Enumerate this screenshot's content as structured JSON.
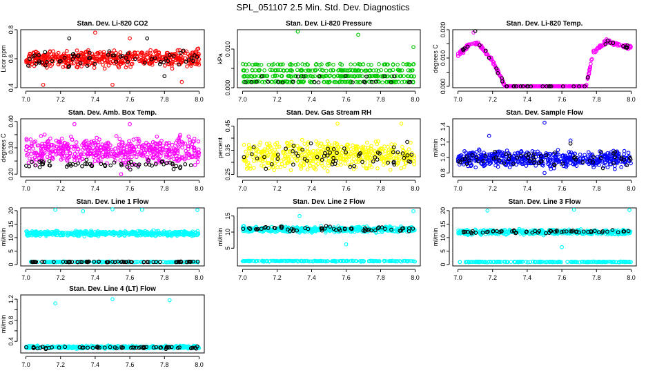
{
  "figure_title": "SPL_051107  2.5 Min. Std. Dev. Diagnostics",
  "colors": {
    "red": "#ff0000",
    "green": "#00c800",
    "magenta": "#ff00ff",
    "yellow": "#ffff00",
    "blue": "#0000ff",
    "cyan": "#00ffff",
    "black": "#000000"
  },
  "chart_data": [
    {
      "type": "scatter",
      "title": "Stan. Dev. Li-820 CO2",
      "xlabel": "",
      "ylabel": "Licor ppm",
      "xlim": [
        6.97,
        8.03
      ],
      "ylim": [
        0.4,
        0.8
      ],
      "yticks": [
        0.4,
        0.6,
        0.8
      ],
      "ytick_labels": [
        "0.4",
        "0.6",
        "0.8"
      ],
      "xticks": [
        7.0,
        7.2,
        7.4,
        7.6,
        7.8,
        8.0
      ],
      "xtick_labels": [
        "7.0",
        "7.2",
        "7.4",
        "7.6",
        "7.8",
        "8.0"
      ],
      "grid": false,
      "series": [
        {
          "color": "red",
          "pattern": "band",
          "n": 520,
          "base": 0.6,
          "spread": 0.06,
          "outliers": [
            [
              7.1,
              0.42
            ],
            [
              7.5,
              0.42
            ],
            [
              7.9,
              0.44
            ],
            [
              7.4,
              0.78
            ],
            [
              7.6,
              0.74
            ]
          ]
        },
        {
          "color": "black",
          "pattern": "band",
          "n": 60,
          "base": 0.6,
          "spread": 0.06,
          "outliers": [
            [
              7.25,
              0.74
            ],
            [
              7.7,
              0.74
            ],
            [
              7.8,
              0.48
            ]
          ]
        }
      ]
    },
    {
      "type": "scatter",
      "title": "Stan. Dev. Li-820 Pressure",
      "xlabel": "",
      "ylabel": "kPa",
      "xlim": [
        6.97,
        8.03
      ],
      "ylim": [
        0.0,
        0.015
      ],
      "yticks": [
        0.0,
        0.005,
        0.01
      ],
      "ytick_labels": [
        "0.000",
        "",
        "0.010"
      ],
      "xticks": [
        7.0,
        7.2,
        7.4,
        7.6,
        7.8,
        8.0
      ],
      "xtick_labels": [
        "7.0",
        "7.2",
        "7.4",
        "7.6",
        "7.8",
        "8.0"
      ],
      "grid": false,
      "series": [
        {
          "color": "green",
          "pattern": "levels",
          "n": 520,
          "levels": [
            0.0,
            0.0015,
            0.003,
            0.0045,
            0.006
          ],
          "weights": [
            0.22,
            0.22,
            0.22,
            0.2,
            0.14
          ],
          "outliers": [
            [
              7.32,
              0.0145
            ],
            [
              7.67,
              0.0137
            ],
            [
              7.99,
              0.0105
            ]
          ]
        },
        {
          "color": "black",
          "pattern": "levels",
          "n": 60,
          "levels": [
            0.0,
            0.0015,
            0.003
          ],
          "weights": [
            0.7,
            0.15,
            0.15
          ],
          "outliers": []
        }
      ]
    },
    {
      "type": "scatter",
      "title": "Stan. Dev. Li-820 Temp.",
      "xlabel": "",
      "ylabel": "degrees C",
      "xlim": [
        6.97,
        8.03
      ],
      "ylim": [
        -0.0005,
        0.02
      ],
      "yticks": [
        0.0,
        0.005,
        0.01,
        0.015,
        0.02
      ],
      "ytick_labels": [
        "0.000",
        "",
        "0.010",
        "",
        "0.020"
      ],
      "xticks": [
        7.0,
        7.2,
        7.4,
        7.6,
        7.8,
        8.0
      ],
      "xtick_labels": [
        "7.0",
        "7.2",
        "7.4",
        "7.6",
        "7.8",
        "8.0"
      ],
      "grid": false,
      "series": [
        {
          "color": "magenta",
          "pattern": "curve",
          "n": 420,
          "spread": 0.0012,
          "curve": [
            [
              7.0,
              0.011
            ],
            [
              7.07,
              0.015
            ],
            [
              7.12,
              0.015
            ],
            [
              7.2,
              0.009
            ],
            [
              7.27,
              0.0005
            ],
            [
              7.74,
              0.0
            ],
            [
              7.78,
              0.012
            ],
            [
              7.86,
              0.016
            ],
            [
              7.96,
              0.014
            ]
          ],
          "outliers": [
            [
              7.09,
              0.019
            ]
          ]
        },
        {
          "color": "black",
          "pattern": "curve",
          "n": 40,
          "spread": 0.001,
          "curve": [
            [
              7.0,
              0.011
            ],
            [
              7.07,
              0.015
            ],
            [
              7.12,
              0.015
            ],
            [
              7.2,
              0.009
            ],
            [
              7.27,
              0.0005
            ],
            [
              7.74,
              0.0
            ],
            [
              7.78,
              0.012
            ],
            [
              7.86,
              0.016
            ],
            [
              7.96,
              0.014
            ]
          ],
          "outliers": [
            [
              7.1,
              0.0195
            ]
          ]
        }
      ]
    },
    {
      "type": "scatter",
      "title": "Stan. Dev. Amb. Box Temp.",
      "xlabel": "",
      "ylabel": "degrees C",
      "xlim": [
        6.97,
        8.03
      ],
      "ylim": [
        0.19,
        0.41
      ],
      "yticks": [
        0.2,
        0.25,
        0.3,
        0.35,
        0.4
      ],
      "ytick_labels": [
        "0.20",
        "",
        "0.30",
        "",
        "0.40"
      ],
      "xticks": [
        7.0,
        7.2,
        7.4,
        7.6,
        7.8,
        8.0
      ],
      "xtick_labels": [
        "7.0",
        "7.2",
        "7.4",
        "7.6",
        "7.8",
        "8.0"
      ],
      "grid": false,
      "series": [
        {
          "color": "magenta",
          "pattern": "band",
          "n": 520,
          "base": 0.29,
          "spread": 0.05,
          "outliers": [
            [
              7.6,
              0.39
            ],
            [
              7.28,
              0.39
            ],
            [
              7.55,
              0.2
            ]
          ]
        },
        {
          "color": "black",
          "pattern": "band",
          "n": 60,
          "base": 0.235,
          "spread": 0.02,
          "outliers": []
        }
      ]
    },
    {
      "type": "scatter",
      "title": "Stan. Dev. Gas Stream RH",
      "xlabel": "",
      "ylabel": "percent",
      "xlim": [
        6.97,
        8.03
      ],
      "ylim": [
        0.24,
        0.48
      ],
      "yticks": [
        0.25,
        0.3,
        0.35,
        0.4,
        0.45
      ],
      "ytick_labels": [
        "0.25",
        "",
        "0.35",
        "",
        "0.45"
      ],
      "xticks": [
        7.0,
        7.2,
        7.4,
        7.6,
        7.8,
        8.0
      ],
      "xtick_labels": [
        "7.0",
        "7.2",
        "7.4",
        "7.6",
        "7.8",
        "8.0"
      ],
      "grid": false,
      "series": [
        {
          "color": "yellow",
          "pattern": "band",
          "n": 520,
          "base": 0.33,
          "spread": 0.055,
          "outliers": [
            [
              7.55,
              0.46
            ],
            [
              7.92,
              0.46
            ]
          ]
        },
        {
          "color": "black",
          "pattern": "band",
          "n": 60,
          "base": 0.33,
          "spread": 0.05,
          "outliers": []
        }
      ]
    },
    {
      "type": "scatter",
      "title": "Stan. Dev. Sample Flow",
      "xlabel": "",
      "ylabel": "ml/min",
      "xlim": [
        6.97,
        8.03
      ],
      "ylim": [
        0.75,
        1.5
      ],
      "yticks": [
        0.8,
        1.0,
        1.2,
        1.4
      ],
      "ytick_labels": [
        "0.8",
        "1.0",
        "1.2",
        "1.4"
      ],
      "xticks": [
        7.0,
        7.2,
        7.4,
        7.6,
        7.8,
        8.0
      ],
      "xtick_labels": [
        "7.0",
        "7.2",
        "7.4",
        "7.6",
        "7.8",
        "8.0"
      ],
      "grid": false,
      "series": [
        {
          "color": "blue",
          "pattern": "band",
          "n": 520,
          "base": 0.98,
          "spread": 0.1,
          "outliers": [
            [
              7.5,
              1.45
            ],
            [
              7.18,
              1.28
            ],
            [
              7.65,
              1.22
            ],
            [
              7.5,
              0.8
            ]
          ]
        },
        {
          "color": "black",
          "pattern": "band",
          "n": 60,
          "base": 0.98,
          "spread": 0.09,
          "outliers": [
            [
              7.65,
              1.18
            ]
          ]
        }
      ]
    },
    {
      "type": "scatter",
      "title": "Stan. Dev. Line 1 Flow",
      "xlabel": "",
      "ylabel": "ml/min",
      "xlim": [
        6.97,
        8.03
      ],
      "ylim": [
        -0.5,
        21
      ],
      "yticks": [
        0,
        5,
        10,
        15,
        20
      ],
      "ytick_labels": [
        "0",
        "5",
        "10",
        "15",
        "20"
      ],
      "xticks": [
        7.0,
        7.2,
        7.4,
        7.6,
        7.8,
        8.0
      ],
      "xtick_labels": [
        "7.0",
        "7.2",
        "7.4",
        "7.6",
        "7.8",
        "8.0"
      ],
      "grid": false,
      "series": [
        {
          "color": "cyan",
          "pattern": "band",
          "n": 460,
          "base": 11.5,
          "spread": 0.9,
          "outliers": [
            [
              7.17,
              20.3
            ],
            [
              7.33,
              19.8
            ],
            [
              7.5,
              20.5
            ],
            [
              7.67,
              20.3
            ],
            [
              7.99,
              20.2
            ]
          ]
        },
        {
          "color": "cyan",
          "pattern": "band",
          "n": 200,
          "base": 1.0,
          "spread": 0.15,
          "outliers": []
        },
        {
          "color": "black",
          "pattern": "band",
          "n": 70,
          "base": 1.0,
          "spread": 0.15,
          "outliers": []
        }
      ]
    },
    {
      "type": "scatter",
      "title": "Stan. Dev. Line 2 Flow",
      "xlabel": "",
      "ylabel": "ml/min",
      "xlim": [
        6.97,
        8.03
      ],
      "ylim": [
        -0.5,
        17.5
      ],
      "yticks": [
        5,
        10,
        15
      ],
      "ytick_labels": [
        "5",
        "10",
        "15"
      ],
      "xticks": [
        7.0,
        7.2,
        7.4,
        7.6,
        7.8,
        8.0
      ],
      "xtick_labels": [
        "7.0",
        "7.2",
        "7.4",
        "7.6",
        "7.8",
        "8.0"
      ],
      "grid": false,
      "series": [
        {
          "color": "cyan",
          "pattern": "band",
          "n": 460,
          "base": 10.8,
          "spread": 0.9,
          "outliers": [
            [
              7.33,
              15.0
            ],
            [
              7.6,
              6.2
            ],
            [
              7.99,
              16.5
            ]
          ]
        },
        {
          "color": "cyan",
          "pattern": "band",
          "n": 200,
          "base": 1.0,
          "spread": 0.15,
          "outliers": []
        },
        {
          "color": "black",
          "pattern": "band",
          "n": 60,
          "base": 11.0,
          "spread": 0.7,
          "outliers": []
        }
      ]
    },
    {
      "type": "scatter",
      "title": "Stan. Dev. Line 3 Flow",
      "xlabel": "",
      "ylabel": "ml/min",
      "xlim": [
        6.97,
        8.03
      ],
      "ylim": [
        -0.5,
        21
      ],
      "yticks": [
        0,
        5,
        10,
        15,
        20
      ],
      "ytick_labels": [
        "0",
        "5",
        "10",
        "15",
        "20"
      ],
      "xticks": [
        7.0,
        7.2,
        7.4,
        7.6,
        7.8,
        8.0
      ],
      "xtick_labels": [
        "7.0",
        "7.2",
        "7.4",
        "7.6",
        "7.8",
        "8.0"
      ],
      "grid": false,
      "series": [
        {
          "color": "cyan",
          "pattern": "band",
          "n": 460,
          "base": 12.0,
          "spread": 0.9,
          "outliers": [
            [
              7.17,
              20.0
            ],
            [
              7.67,
              20.3
            ],
            [
              7.99,
              20.2
            ],
            [
              7.6,
              6.5
            ]
          ]
        },
        {
          "color": "cyan",
          "pattern": "band",
          "n": 200,
          "base": 1.0,
          "spread": 0.15,
          "outliers": []
        },
        {
          "color": "black",
          "pattern": "band",
          "n": 60,
          "base": 12.2,
          "spread": 0.6,
          "outliers": []
        }
      ]
    },
    {
      "type": "scatter",
      "title": "Stan. Dev. Line 4 (LT) Flow",
      "xlabel": "",
      "ylabel": "ml/min",
      "xlim": [
        6.97,
        8.03
      ],
      "ylim": [
        0.18,
        1.28
      ],
      "yticks": [
        0.4,
        0.6,
        0.8,
        1.0,
        1.2
      ],
      "ytick_labels": [
        "0.4",
        "",
        "0.8",
        "",
        "1.2"
      ],
      "xticks": [
        7.0,
        7.2,
        7.4,
        7.6,
        7.8,
        8.0
      ],
      "xtick_labels": [
        "7.0",
        "7.2",
        "7.4",
        "7.6",
        "7.8",
        "8.0"
      ],
      "grid": false,
      "series": [
        {
          "color": "cyan",
          "pattern": "band",
          "n": 460,
          "base": 0.29,
          "spread": 0.025,
          "outliers": [
            [
              7.17,
              1.12
            ],
            [
              7.5,
              1.2
            ],
            [
              7.83,
              1.18
            ]
          ]
        },
        {
          "color": "black",
          "pattern": "band",
          "n": 60,
          "base": 0.28,
          "spread": 0.02,
          "outliers": []
        }
      ]
    }
  ]
}
